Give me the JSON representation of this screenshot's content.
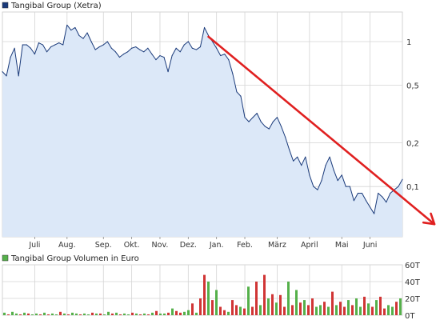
{
  "colors": {
    "price_line": "#1a3a7a",
    "price_fill": "#dce8f8",
    "grid": "#d4d4d4",
    "axis": "#888888",
    "trend_arrow": "#e02020",
    "volume_up": "#55b04a",
    "volume_down": "#d03535",
    "legend_price": "#1a3a7a",
    "legend_volume": "#55b04a"
  },
  "chart_data": [
    {
      "type": "area",
      "title": "Tangibal Group (Xetra)",
      "y_scale": "log",
      "ylim": [
        0.045,
        1.6
      ],
      "yticks": [
        {
          "value": 1,
          "label": "1"
        },
        {
          "value": 0.5,
          "label": "0,5"
        },
        {
          "value": 0.2,
          "label": "0,2"
        },
        {
          "value": 0.1,
          "label": "0,1"
        }
      ],
      "grid": true,
      "x_count": 100,
      "xticks": [
        {
          "x": 8,
          "label": "Juli"
        },
        {
          "x": 16,
          "label": "Aug."
        },
        {
          "x": 25,
          "label": "Sep."
        },
        {
          "x": 32,
          "label": "Okt."
        },
        {
          "x": 39,
          "label": "Nov."
        },
        {
          "x": 46,
          "label": "Dez."
        },
        {
          "x": 53,
          "label": "Jan."
        },
        {
          "x": 60,
          "label": "Feb."
        },
        {
          "x": 68,
          "label": "März"
        },
        {
          "x": 76,
          "label": "April"
        },
        {
          "x": 84,
          "label": "Mai"
        },
        {
          "x": 91,
          "label": "Juni"
        }
      ],
      "values": [
        0.62,
        0.58,
        0.78,
        0.9,
        0.58,
        0.95,
        0.95,
        0.9,
        0.82,
        0.98,
        0.95,
        0.85,
        0.92,
        0.95,
        0.98,
        0.95,
        1.3,
        1.2,
        1.25,
        1.1,
        1.05,
        1.15,
        1.0,
        0.88,
        0.92,
        0.95,
        1.0,
        0.9,
        0.85,
        0.78,
        0.82,
        0.85,
        0.9,
        0.92,
        0.88,
        0.85,
        0.9,
        0.82,
        0.75,
        0.8,
        0.78,
        0.62,
        0.8,
        0.9,
        0.85,
        0.95,
        1.0,
        0.9,
        0.88,
        0.92,
        1.25,
        1.1,
        1.0,
        0.9,
        0.8,
        0.82,
        0.75,
        0.6,
        0.45,
        0.42,
        0.3,
        0.28,
        0.3,
        0.32,
        0.28,
        0.26,
        0.25,
        0.28,
        0.3,
        0.26,
        0.22,
        0.18,
        0.15,
        0.16,
        0.14,
        0.16,
        0.12,
        0.1,
        0.095,
        0.11,
        0.14,
        0.16,
        0.13,
        0.11,
        0.12,
        0.1,
        0.1,
        0.08,
        0.09,
        0.09,
        0.08,
        0.072,
        0.065,
        0.09,
        0.085,
        0.078,
        0.09,
        0.095,
        0.1,
        0.112
      ],
      "annotations": [
        {
          "type": "arrow",
          "x0": 51,
          "y0": 1.08,
          "x1": 100,
          "y1": 0.055
        }
      ]
    },
    {
      "type": "bar",
      "title": "Tangibal Group Volumen in Euro",
      "ylim": [
        0,
        60
      ],
      "yticks": [
        {
          "value": 60,
          "label": "60T"
        },
        {
          "value": 40,
          "label": "40T"
        },
        {
          "value": 20,
          "label": "20T"
        },
        {
          "value": 0,
          "label": "0T"
        }
      ],
      "unit": "T",
      "values": [
        3,
        1,
        4,
        2,
        1,
        3,
        2,
        1,
        2,
        1,
        3,
        1,
        2,
        1,
        4,
        2,
        1,
        3,
        2,
        1,
        2,
        1,
        3,
        2,
        2,
        1,
        4,
        2,
        3,
        1,
        2,
        1,
        3,
        2,
        1,
        2,
        1,
        3,
        5,
        2,
        2,
        3,
        8,
        5,
        3,
        4,
        6,
        14,
        3,
        20,
        48,
        40,
        18,
        30,
        10,
        6,
        4,
        18,
        12,
        10,
        8,
        34,
        10,
        40,
        12,
        48,
        20,
        25,
        15,
        24,
        10,
        40,
        12,
        30,
        15,
        18,
        12,
        20,
        10,
        12,
        16,
        10,
        28,
        12,
        16,
        10,
        18,
        12,
        20,
        10,
        22,
        14,
        10,
        18,
        22,
        8,
        12,
        10,
        16,
        20
      ],
      "direction": [
        1,
        0,
        1,
        1,
        0,
        1,
        0,
        1,
        1,
        0,
        1,
        0,
        1,
        1,
        0,
        1,
        0,
        1,
        1,
        0,
        1,
        1,
        0,
        1,
        0,
        1,
        1,
        0,
        1,
        0,
        1,
        1,
        0,
        1,
        0,
        1,
        0,
        1,
        0,
        1,
        1,
        0,
        1,
        0,
        0,
        1,
        1,
        0,
        1,
        0,
        0,
        1,
        0,
        1,
        0,
        0,
        1,
        0,
        0,
        1,
        0,
        1,
        0,
        0,
        1,
        0,
        1,
        0,
        1,
        0,
        0,
        1,
        0,
        1,
        0,
        1,
        0,
        0,
        1,
        1,
        0,
        1,
        0,
        1,
        0,
        0,
        1,
        0,
        1,
        1,
        0,
        1,
        0,
        1,
        0,
        0,
        1,
        1,
        0,
        1
      ]
    }
  ]
}
